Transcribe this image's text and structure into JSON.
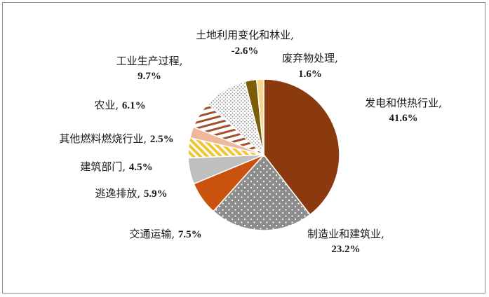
{
  "chart_data": {
    "type": "pie",
    "title": "",
    "start_angle_deg": 0,
    "direction": "clockwise",
    "slices": [
      {
        "label": "发电和供热行业",
        "value": 41.6,
        "text": "41.6%",
        "color": "#8B3A0F",
        "pattern": "solid"
      },
      {
        "label": "制造业和建筑业",
        "value": 23.2,
        "text": "23.2%",
        "color": "#8C8C8C",
        "pattern": "dots"
      },
      {
        "label": "交通运输",
        "value": 7.5,
        "text": "7.5%",
        "color": "#C9530E",
        "pattern": "solid"
      },
      {
        "label": "逃逸排放",
        "value": 5.9,
        "text": "5.9%",
        "color": "#BFBFBF",
        "pattern": "solid"
      },
      {
        "label": "建筑部门",
        "value": 4.5,
        "text": "4.5%",
        "color": "#F2C431",
        "pattern": "diagonal"
      },
      {
        "label": "其他燃料燃烧行业",
        "value": 2.5,
        "text": "2.5%",
        "color": "#F0B89A",
        "pattern": "solid"
      },
      {
        "label": "农业",
        "value": 6.1,
        "text": "6.1%",
        "color": "#A0522D",
        "pattern": "horizontal"
      },
      {
        "label": "工业生产过程",
        "value": 9.7,
        "text": "9.7%",
        "color": "#D9D9D9",
        "pattern": "dots-light"
      },
      {
        "label": "土地利用变化和林业",
        "value": -2.6,
        "text": "-2.6%",
        "color": "#7A5C0A",
        "pattern": "solid"
      },
      {
        "label": "废弃物处理",
        "value": 1.6,
        "text": "1.6%",
        "color": "#F5D58A",
        "pattern": "solid"
      }
    ]
  }
}
